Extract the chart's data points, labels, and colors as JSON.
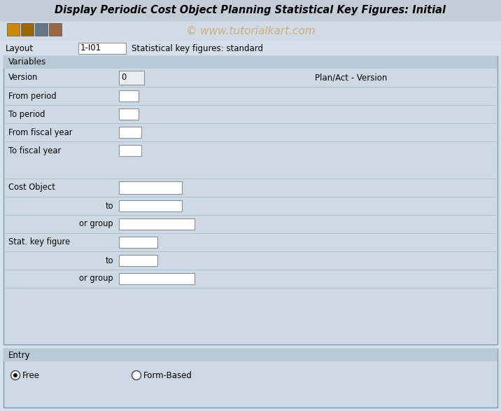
{
  "title": "Display Periodic Cost Object Planning Statistical Key Figures: Initial",
  "watermark": "© www.tutorialkart.com",
  "watermark_color": "#c8a060",
  "bg_color": "#d6e0eb",
  "title_bar_bg": "#c2cdd8",
  "toolbar_bg": "#d0dbe5",
  "panel_bg": "#cddae6",
  "panel_border": "#7a9ab0",
  "white": "#ffffff",
  "section_header_bg": "#b8cad6",
  "text_color": "#000000",
  "title_text_color": "#000000",
  "layout_label": "Layout",
  "layout_value": "1-I01",
  "layout_desc": "Statistical key figures: standard",
  "variables_section": "Variables",
  "entry_section": "Entry",
  "plan_act_text": "Plan/Act - Version",
  "separator_color": "#a0b8c8",
  "box_border": "#909090",
  "version_box_bg": "#e8eef4"
}
